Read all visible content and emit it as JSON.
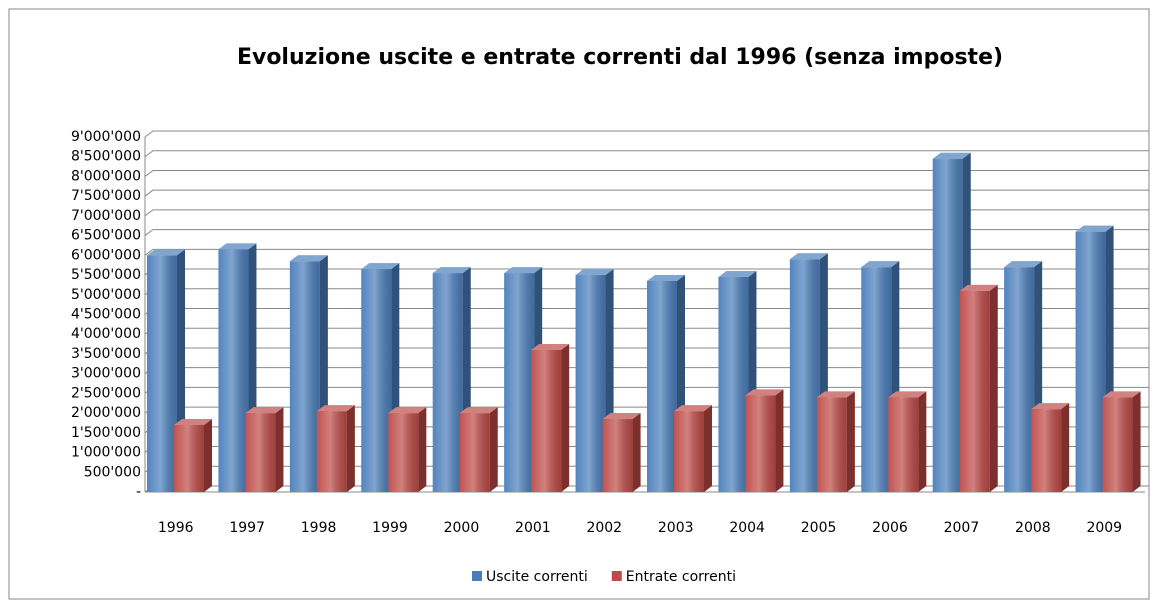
{
  "chart_data": {
    "type": "bar",
    "title": "Evoluzione uscite e entrate correnti dal 1996 (senza imposte)",
    "categories": [
      "1996",
      "1997",
      "1998",
      "1999",
      "2000",
      "2001",
      "2002",
      "2003",
      "2004",
      "2005",
      "2006",
      "2007",
      "2008",
      "2009"
    ],
    "series": [
      {
        "name": "Uscite correnti",
        "color": "#4a7ebb",
        "values": [
          6000000,
          6150000,
          5850000,
          5650000,
          5550000,
          5550000,
          5500000,
          5350000,
          5450000,
          5900000,
          5700000,
          8450000,
          5700000,
          6600000
        ]
      },
      {
        "name": "Entrate correnti",
        "color": "#be4b48",
        "values": [
          1700000,
          2000000,
          2050000,
          2000000,
          2000000,
          3600000,
          1850000,
          2050000,
          2450000,
          2400000,
          2400000,
          5100000,
          2100000,
          2400000
        ]
      }
    ],
    "ylim": [
      0,
      9000000
    ],
    "yticks": [
      {
        "value": 0,
        "label": "-"
      },
      {
        "value": 500000,
        "label": "500'000"
      },
      {
        "value": 1000000,
        "label": "1'000'000"
      },
      {
        "value": 1500000,
        "label": "1'500'000"
      },
      {
        "value": 2000000,
        "label": "2'000'000"
      },
      {
        "value": 2500000,
        "label": "2'500'000"
      },
      {
        "value": 3000000,
        "label": "3'000'000"
      },
      {
        "value": 3500000,
        "label": "3'500'000"
      },
      {
        "value": 4000000,
        "label": "4'000'000"
      },
      {
        "value": 4500000,
        "label": "4'500'000"
      },
      {
        "value": 5000000,
        "label": "5'000'000"
      },
      {
        "value": 5500000,
        "label": "5'500'000"
      },
      {
        "value": 6000000,
        "label": "6'000'000"
      },
      {
        "value": 6500000,
        "label": "6'500'000"
      },
      {
        "value": 7000000,
        "label": "7'000'000"
      },
      {
        "value": 7500000,
        "label": "7'500'000"
      },
      {
        "value": 8000000,
        "label": "8'000'000"
      },
      {
        "value": 8500000,
        "label": "8'500'000"
      },
      {
        "value": 9000000,
        "label": "9'000'000"
      }
    ],
    "grid": true,
    "legend": "bottom"
  }
}
